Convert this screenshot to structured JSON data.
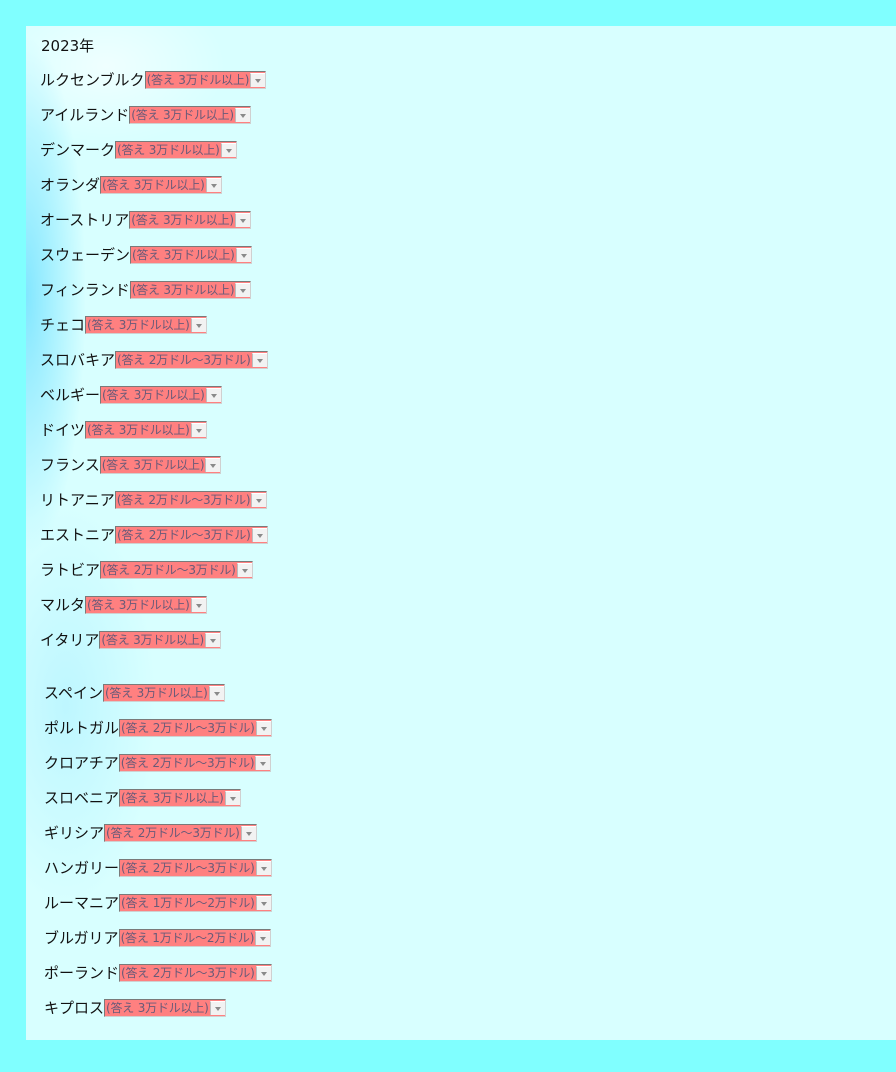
{
  "year_label": "2023年",
  "rows": [
    {
      "country": "ルクセンブルク",
      "answer": "(答え 3万ドル以上)"
    },
    {
      "country": "アイルランド",
      "answer": "(答え 3万ドル以上)"
    },
    {
      "country": "デンマーク",
      "answer": "(答え 3万ドル以上)"
    },
    {
      "country": "オランダ",
      "answer": "(答え 3万ドル以上)"
    },
    {
      "country": "オーストリア",
      "answer": "(答え 3万ドル以上)"
    },
    {
      "country": "スウェーデン",
      "answer": "(答え 3万ドル以上)"
    },
    {
      "country": "フィンランド",
      "answer": "(答え 3万ドル以上)"
    },
    {
      "country": "チェコ",
      "answer": "(答え 3万ドル以上)"
    },
    {
      "country": "スロバキア",
      "answer": "(答え 2万ドル～3万ドル)"
    },
    {
      "country": "ベルギー",
      "answer": "(答え 3万ドル以上)"
    },
    {
      "country": "ドイツ",
      "answer": "(答え 3万ドル以上)"
    },
    {
      "country": "フランス",
      "answer": "(答え 3万ドル以上)"
    },
    {
      "country": "リトアニア",
      "answer": "(答え 2万ドル～3万ドル)"
    },
    {
      "country": "エストニア",
      "answer": "(答え 2万ドル～3万ドル)"
    },
    {
      "country": "ラトビア",
      "answer": "(答え 2万ドル～3万ドル)"
    },
    {
      "country": "マルタ",
      "answer": "(答え 3万ドル以上)"
    },
    {
      "country": "イタリア",
      "answer": "(答え 3万ドル以上)"
    },
    {
      "country": "スペイン",
      "answer": "(答え 3万ドル以上)"
    },
    {
      "country": "ポルトガル",
      "answer": "(答え 2万ドル～3万ドル)"
    },
    {
      "country": "クロアチア",
      "answer": "(答え 2万ドル～3万ドル)"
    },
    {
      "country": "スロベニア",
      "answer": "(答え 3万ドル以上)"
    },
    {
      "country": "ギリシア",
      "answer": "(答え 2万ドル～3万ドル)"
    },
    {
      "country": "ハンガリー",
      "answer": "(答え 2万ドル～3万ドル)"
    },
    {
      "country": "ルーマニア",
      "answer": "(答え 1万ドル～2万ドル)"
    },
    {
      "country": "ブルガリア",
      "answer": "(答え 1万ドル～2万ドル)"
    },
    {
      "country": "ポーランド",
      "answer": "(答え 2万ドル～3万ドル)"
    },
    {
      "country": "キプロス",
      "answer": "(答え 3万ドル以上)"
    }
  ]
}
